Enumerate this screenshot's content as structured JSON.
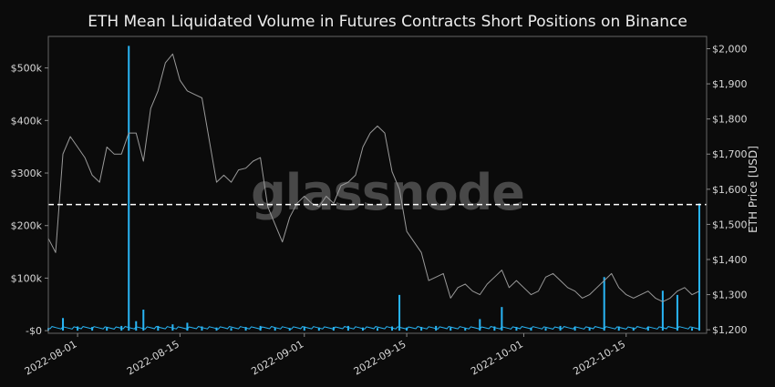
{
  "chart_data": {
    "type": "line",
    "title": "ETH Mean Liquidated Volume in Futures Contracts Short Positions on Binance",
    "watermark": "glassnode",
    "y2label": "ETH Price [USD]",
    "ylabel": "",
    "xlabel": "",
    "x_ticks": [
      "2022-08-01",
      "2022-08-15",
      "2022-09-01",
      "2022-09-15",
      "2022-10-01",
      "2022-10-15"
    ],
    "y_ticks": [
      "-$0",
      "$100k",
      "$200k",
      "$300k",
      "$400k",
      "$500k"
    ],
    "y2_ticks": [
      "$1,200",
      "$1,300",
      "$1,400",
      "$1,500",
      "$1,600",
      "$1,700",
      "$1,800",
      "$1,900",
      "$2,000"
    ],
    "x_range": [
      "2022-07-28",
      "2022-10-26"
    ],
    "ylim": [
      -5000,
      560000
    ],
    "y2lim": [
      1190,
      2035
    ],
    "threshold": {
      "value": 240000,
      "style": "dashed",
      "color": "#ffffff"
    },
    "colors": {
      "volume": "#29b6f6",
      "price": "#9a9a9a",
      "background": "#0b0b0b",
      "axes": "#666666"
    },
    "series": [
      {
        "name": "Mean Liquidated Volume (Short)",
        "axis": "left",
        "style": "bar",
        "x": [
          "2022-07-28",
          "2022-07-30",
          "2022-08-01",
          "2022-08-03",
          "2022-08-05",
          "2022-08-07",
          "2022-08-08",
          "2022-08-09",
          "2022-08-10",
          "2022-08-12",
          "2022-08-14",
          "2022-08-16",
          "2022-08-18",
          "2022-08-20",
          "2022-08-22",
          "2022-08-24",
          "2022-08-26",
          "2022-08-28",
          "2022-08-30",
          "2022-09-01",
          "2022-09-03",
          "2022-09-05",
          "2022-09-07",
          "2022-09-09",
          "2022-09-11",
          "2022-09-13",
          "2022-09-14",
          "2022-09-15",
          "2022-09-17",
          "2022-09-19",
          "2022-09-21",
          "2022-09-23",
          "2022-09-25",
          "2022-09-27",
          "2022-09-28",
          "2022-09-30",
          "2022-10-02",
          "2022-10-04",
          "2022-10-06",
          "2022-10-08",
          "2022-10-10",
          "2022-10-12",
          "2022-10-14",
          "2022-10-16",
          "2022-10-18",
          "2022-10-20",
          "2022-10-22",
          "2022-10-24",
          "2022-10-25"
        ],
        "values": [
          5000,
          24000,
          8000,
          7000,
          6000,
          9000,
          542000,
          18000,
          40000,
          9000,
          12000,
          15000,
          8000,
          6000,
          5000,
          7000,
          9000,
          6000,
          5000,
          8000,
          6000,
          7000,
          9000,
          6000,
          5000,
          8000,
          68000,
          6000,
          7000,
          9000,
          6000,
          5000,
          22000,
          8000,
          45000,
          7000,
          6000,
          5000,
          9000,
          7000,
          6000,
          102000,
          8000,
          6000,
          7000,
          76000,
          68000,
          5000,
          242000
        ]
      },
      {
        "name": "ETH Price",
        "axis": "right",
        "style": "line",
        "x": [
          "2022-07-28",
          "2022-07-29",
          "2022-07-30",
          "2022-07-31",
          "2022-08-01",
          "2022-08-02",
          "2022-08-03",
          "2022-08-04",
          "2022-08-05",
          "2022-08-06",
          "2022-08-07",
          "2022-08-08",
          "2022-08-09",
          "2022-08-10",
          "2022-08-11",
          "2022-08-12",
          "2022-08-13",
          "2022-08-14",
          "2022-08-15",
          "2022-08-16",
          "2022-08-17",
          "2022-08-18",
          "2022-08-19",
          "2022-08-20",
          "2022-08-21",
          "2022-08-22",
          "2022-08-23",
          "2022-08-24",
          "2022-08-25",
          "2022-08-26",
          "2022-08-27",
          "2022-08-28",
          "2022-08-29",
          "2022-08-30",
          "2022-08-31",
          "2022-09-01",
          "2022-09-02",
          "2022-09-03",
          "2022-09-04",
          "2022-09-05",
          "2022-09-06",
          "2022-09-07",
          "2022-09-08",
          "2022-09-09",
          "2022-09-10",
          "2022-09-11",
          "2022-09-12",
          "2022-09-13",
          "2022-09-14",
          "2022-09-15",
          "2022-09-16",
          "2022-09-17",
          "2022-09-18",
          "2022-09-19",
          "2022-09-20",
          "2022-09-21",
          "2022-09-22",
          "2022-09-23",
          "2022-09-24",
          "2022-09-25",
          "2022-09-26",
          "2022-09-27",
          "2022-09-28",
          "2022-09-29",
          "2022-09-30",
          "2022-10-01",
          "2022-10-02",
          "2022-10-03",
          "2022-10-04",
          "2022-10-05",
          "2022-10-06",
          "2022-10-07",
          "2022-10-08",
          "2022-10-09",
          "2022-10-10",
          "2022-10-11",
          "2022-10-12",
          "2022-10-13",
          "2022-10-14",
          "2022-10-15",
          "2022-10-16",
          "2022-10-17",
          "2022-10-18",
          "2022-10-19",
          "2022-10-20",
          "2022-10-21",
          "2022-10-22",
          "2022-10-23",
          "2022-10-24",
          "2022-10-25"
        ],
        "values": [
          1460,
          1420,
          1700,
          1750,
          1720,
          1690,
          1640,
          1620,
          1720,
          1700,
          1700,
          1760,
          1760,
          1680,
          1830,
          1880,
          1960,
          1985,
          1910,
          1880,
          1870,
          1860,
          1740,
          1620,
          1640,
          1620,
          1655,
          1660,
          1680,
          1690,
          1550,
          1500,
          1450,
          1520,
          1560,
          1580,
          1560,
          1550,
          1580,
          1560,
          1610,
          1620,
          1640,
          1720,
          1760,
          1780,
          1760,
          1650,
          1600,
          1480,
          1450,
          1420,
          1340,
          1350,
          1360,
          1290,
          1320,
          1330,
          1310,
          1300,
          1330,
          1350,
          1370,
          1320,
          1340,
          1320,
          1300,
          1310,
          1350,
          1360,
          1340,
          1320,
          1310,
          1290,
          1300,
          1320,
          1340,
          1360,
          1320,
          1300,
          1290,
          1300,
          1310,
          1290,
          1280,
          1290,
          1310,
          1320,
          1300,
          1310
        ]
      }
    ]
  }
}
